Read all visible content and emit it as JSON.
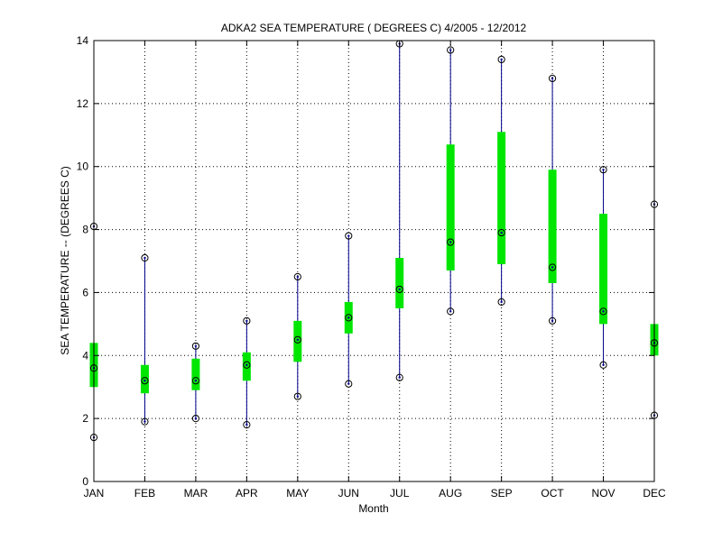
{
  "chart_data": {
    "type": "box",
    "title": "ADKA2  SEA TEMPERATURE ( DEGREES C) 4/2005 - 12/2012",
    "xlabel": "Month",
    "ylabel": "SEA TEMPERATURE -- (DEGREES C)",
    "ylim": [
      0,
      14
    ],
    "yticks": [
      0,
      2,
      4,
      6,
      8,
      10,
      12,
      14
    ],
    "ytick_labels": [
      "0",
      "2",
      "4",
      "6",
      "8",
      "10",
      "12",
      "14"
    ],
    "grid": true,
    "categories": [
      "JAN",
      "FEB",
      "MAR",
      "APR",
      "MAY",
      "JUN",
      "JUL",
      "AUG",
      "SEP",
      "OCT",
      "NOV",
      "DEC"
    ],
    "series": [
      {
        "min": [
          1.4,
          1.9,
          2.0,
          1.8,
          2.7,
          3.1,
          3.3,
          5.4,
          5.7,
          5.1,
          3.7,
          2.1
        ],
        "q1": [
          3.0,
          2.8,
          2.9,
          3.2,
          3.8,
          4.7,
          5.5,
          6.7,
          6.9,
          6.3,
          5.0,
          4.0
        ],
        "median": [
          3.6,
          3.2,
          3.2,
          3.7,
          4.5,
          5.2,
          6.1,
          7.6,
          7.9,
          6.8,
          5.4,
          4.4
        ],
        "q3": [
          4.4,
          3.7,
          3.9,
          4.1,
          5.1,
          5.7,
          7.1,
          10.7,
          11.1,
          9.9,
          8.5,
          5.0
        ],
        "max": [
          8.1,
          7.1,
          4.3,
          5.1,
          6.5,
          7.8,
          13.9,
          13.7,
          13.4,
          12.8,
          9.9,
          8.8
        ]
      }
    ],
    "colors": {
      "whisker": "#00008b",
      "box": "#00e600",
      "marker": "#000000",
      "grid": "#000000"
    }
  }
}
